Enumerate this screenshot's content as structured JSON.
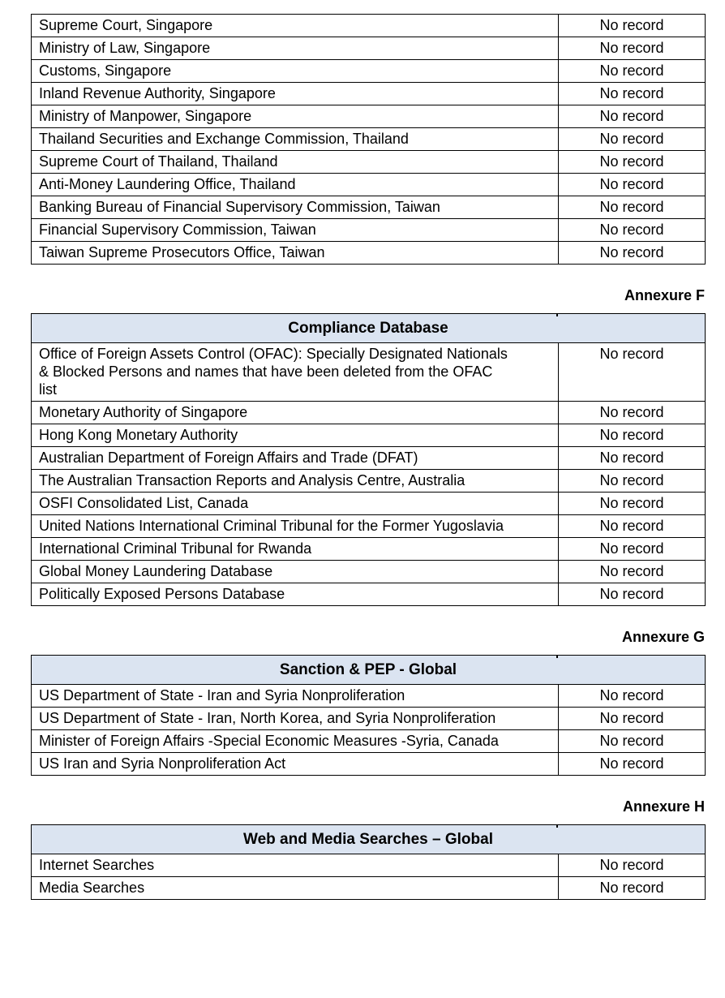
{
  "document": {
    "colors": {
      "page_background": "#ffffff",
      "table_border": "#000000",
      "table_header_fill": "#dbe4f1"
    },
    "continuation_table": {
      "rows": [
        {
          "source": "Supreme Court, Singapore",
          "result": "No record"
        },
        {
          "source": "Ministry of Law, Singapore",
          "result": "No record"
        },
        {
          "source": "Customs, Singapore",
          "result": "No record"
        },
        {
          "source": "Inland Revenue Authority, Singapore",
          "result": "No record"
        },
        {
          "source": "Ministry of Manpower, Singapore",
          "result": "No record"
        },
        {
          "source": "Thailand Securities and Exchange Commission, Thailand",
          "result": "No record"
        },
        {
          "source": "Supreme Court of Thailand, Thailand",
          "result": "No record"
        },
        {
          "source": "Anti-Money Laundering Office, Thailand",
          "result": "No record"
        },
        {
          "source": "Banking Bureau of Financial Supervisory Commission, Taiwan",
          "result": "No record"
        },
        {
          "source": "Financial Supervisory Commission, Taiwan",
          "result": "No record"
        },
        {
          "source": "Taiwan Supreme Prosecutors Office, Taiwan",
          "result": "No record"
        }
      ]
    },
    "sections": [
      {
        "annexure_label": "Annexure F",
        "title": "Compliance Database",
        "rows": [
          {
            "source": "Office of Foreign Assets Control (OFAC): Specially Designated Nationals & Blocked Persons and names that have been deleted from the OFAC list",
            "result": "No record"
          },
          {
            "source": "Monetary Authority of Singapore",
            "result": "No record"
          },
          {
            "source": "Hong Kong Monetary Authority",
            "result": "No record"
          },
          {
            "source": "Australian Department of Foreign Affairs and Trade (DFAT)",
            "result": "No record"
          },
          {
            "source": "The Australian Transaction Reports and Analysis Centre, Australia",
            "result": "No record"
          },
          {
            "source": "OSFI Consolidated List, Canada",
            "result": "No record"
          },
          {
            "source": "United Nations International Criminal Tribunal for the Former Yugoslavia",
            "result": "No record"
          },
          {
            "source": "International Criminal Tribunal for Rwanda",
            "result": "No record"
          },
          {
            "source": "Global Money Laundering Database",
            "result": "No record"
          },
          {
            "source": "Politically Exposed Persons Database",
            "result": "No record"
          }
        ]
      },
      {
        "annexure_label": "Annexure G",
        "title": "Sanction & PEP - Global",
        "rows": [
          {
            "source": "US Department of State - Iran and Syria Nonproliferation",
            "result": "No record"
          },
          {
            "source": "US Department of State - Iran, North Korea, and Syria Nonproliferation",
            "result": "No record"
          },
          {
            "source": "Minister of Foreign Affairs -Special Economic Measures -Syria, Canada",
            "result": "No record"
          },
          {
            "source": "US Iran and Syria Nonproliferation Act",
            "result": "No record"
          }
        ]
      },
      {
        "annexure_label": "Annexure H",
        "title": "Web and Media Searches – Global",
        "rows": [
          {
            "source": "Internet Searches",
            "result": "No record"
          },
          {
            "source": "Media Searches",
            "result": "No record"
          }
        ]
      }
    ]
  }
}
